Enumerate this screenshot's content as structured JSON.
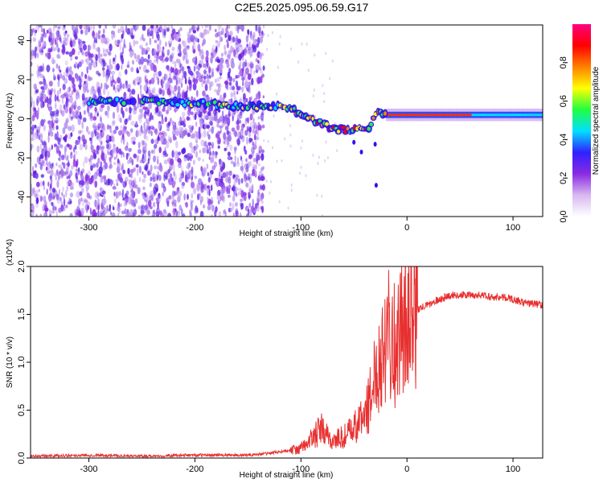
{
  "title": "C2E5.2025.095.06.59.G17",
  "chart_data": [
    {
      "type": "heatmap",
      "xlabel": "Height of straight line (km)",
      "ylabel": "Frequency (Hz)",
      "xlim": [
        -355,
        128
      ],
      "ylim": [
        -50,
        48
      ],
      "xticks": [
        -300,
        -200,
        -100,
        0,
        100
      ],
      "xtick_labels": [
        "-300",
        "-200",
        "-100",
        "0",
        "100"
      ],
      "yticks": [
        40,
        20,
        0,
        -20,
        -40
      ],
      "ytick_labels": [
        "40",
        "20",
        "0",
        "-20",
        "-40"
      ],
      "colorbar": {
        "label": "Normalized spectral amplitude",
        "range": [
          0,
          1
        ],
        "ticks": [
          0.0,
          0.2,
          0.4,
          0.6,
          0.8
        ],
        "tick_labels": [
          "0.0",
          "0.2",
          "0.4",
          "0.6",
          "0.8"
        ],
        "colormap": [
          "#ffffff",
          "#d8b8f0",
          "#8a2be2",
          "#3020ff",
          "#00e0ff",
          "#20ff40",
          "#ffff00",
          "#ff8000",
          "#ff0000",
          "#ff0080"
        ]
      },
      "signal_track": {
        "x": [
          -300,
          -250,
          -200,
          -150,
          -130,
          -110,
          -90,
          -70,
          -55,
          -45,
          -35,
          -28,
          -20,
          0,
          40,
          80,
          128
        ],
        "frequency": [
          9,
          9,
          8,
          6,
          7,
          5,
          0,
          -5,
          -6,
          -5,
          -4,
          5,
          2,
          2,
          2,
          2,
          2
        ]
      },
      "grid": false
    },
    {
      "type": "line",
      "xlabel": "Height of straight line (km)",
      "ylabel": "SNR (10 * v/v)",
      "y_multiplier": "(x10^4)",
      "xlim": [
        -355,
        128
      ],
      "ylim": [
        0,
        2.0
      ],
      "xticks": [
        -300,
        -200,
        -100,
        0,
        100
      ],
      "xtick_labels": [
        "-300",
        "-200",
        "-100",
        "0",
        "100"
      ],
      "yticks": [
        0.0,
        0.5,
        1.0,
        1.5,
        2.0
      ],
      "ytick_labels": [
        "0.0",
        "0.5",
        "1.0",
        "1.5",
        "2.0"
      ],
      "series": [
        {
          "color": "#e83030",
          "x": [
            -355,
            -300,
            -250,
            -200,
            -150,
            -130,
            -110,
            -100,
            -90,
            -80,
            -75,
            -70,
            -60,
            -50,
            -40,
            -35,
            -30,
            -25,
            -20,
            -18,
            -15,
            -10,
            -5,
            0,
            10,
            20,
            30,
            40,
            50,
            60,
            70,
            80,
            90,
            100,
            110,
            120,
            128
          ],
          "y": [
            0.02,
            0.03,
            0.02,
            0.03,
            0.03,
            0.05,
            0.08,
            0.1,
            0.2,
            0.3,
            0.22,
            0.18,
            0.22,
            0.3,
            0.45,
            0.6,
            0.9,
            1.05,
            1.3,
            1.6,
            1.3,
            1.1,
            1.4,
            1.55,
            1.55,
            1.6,
            1.65,
            1.7,
            1.7,
            1.7,
            1.7,
            1.68,
            1.68,
            1.66,
            1.62,
            1.61,
            1.6
          ]
        }
      ],
      "grid": false
    }
  ]
}
